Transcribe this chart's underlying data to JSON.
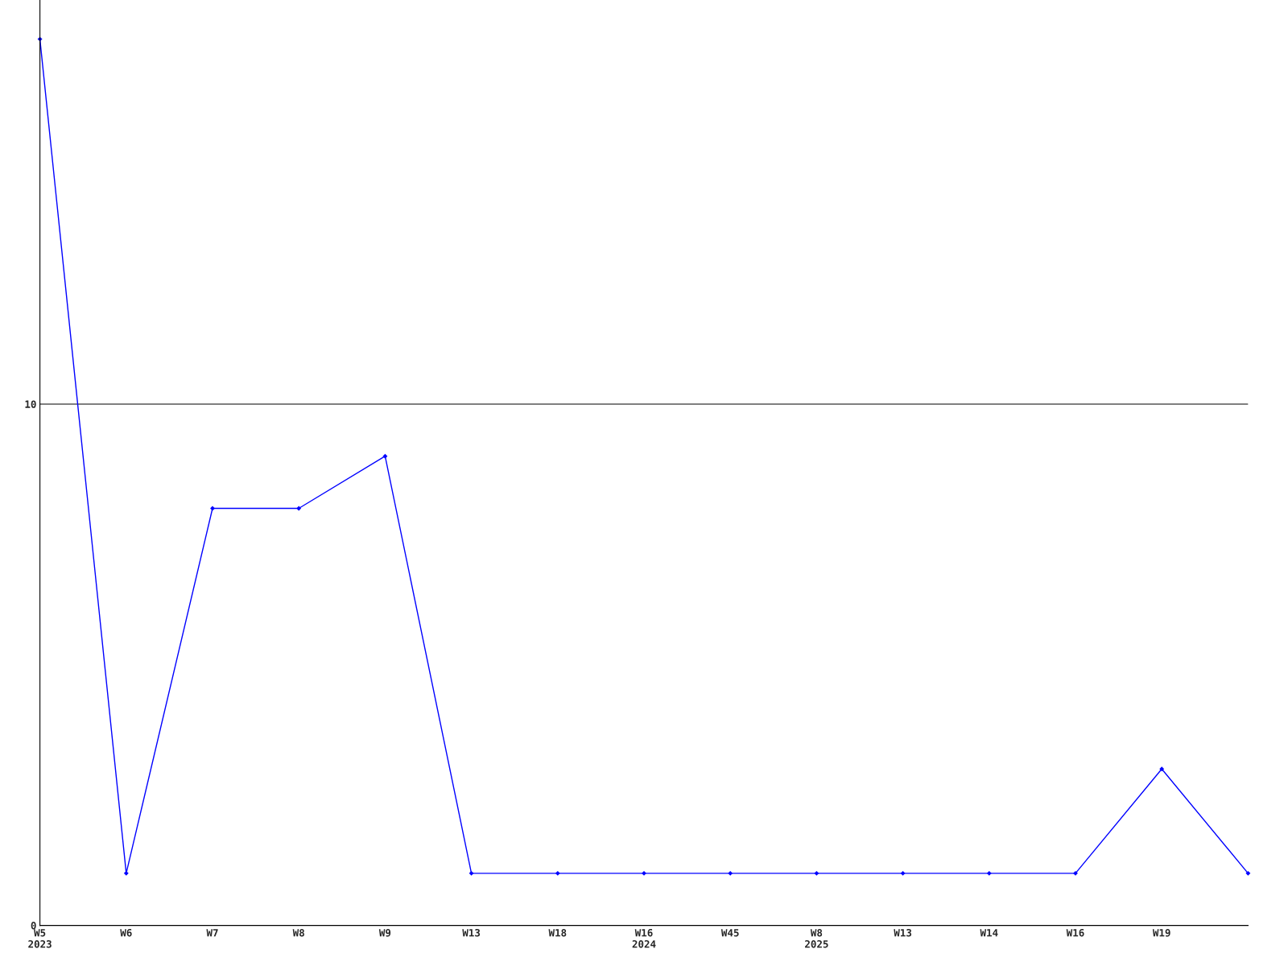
{
  "chart_data": {
    "type": "line",
    "categories": [
      "W5\n2023",
      "W6",
      "W7",
      "W8",
      "W9",
      "W13",
      "W18",
      "W16\n2024",
      "W45",
      "W8\n2025",
      "W13",
      "W14",
      "W16",
      "W19",
      null
    ],
    "series": [
      {
        "color": "#0000ff",
        "values": [
          17,
          1,
          8,
          8,
          9,
          1,
          1,
          1,
          1,
          1,
          1,
          1,
          1,
          3,
          1
        ]
      }
    ],
    "ylim": [
      0,
      17.75
    ],
    "yticks": [
      0,
      10
    ],
    "grid": "y",
    "marker": "diamond",
    "line_style": "solid"
  }
}
